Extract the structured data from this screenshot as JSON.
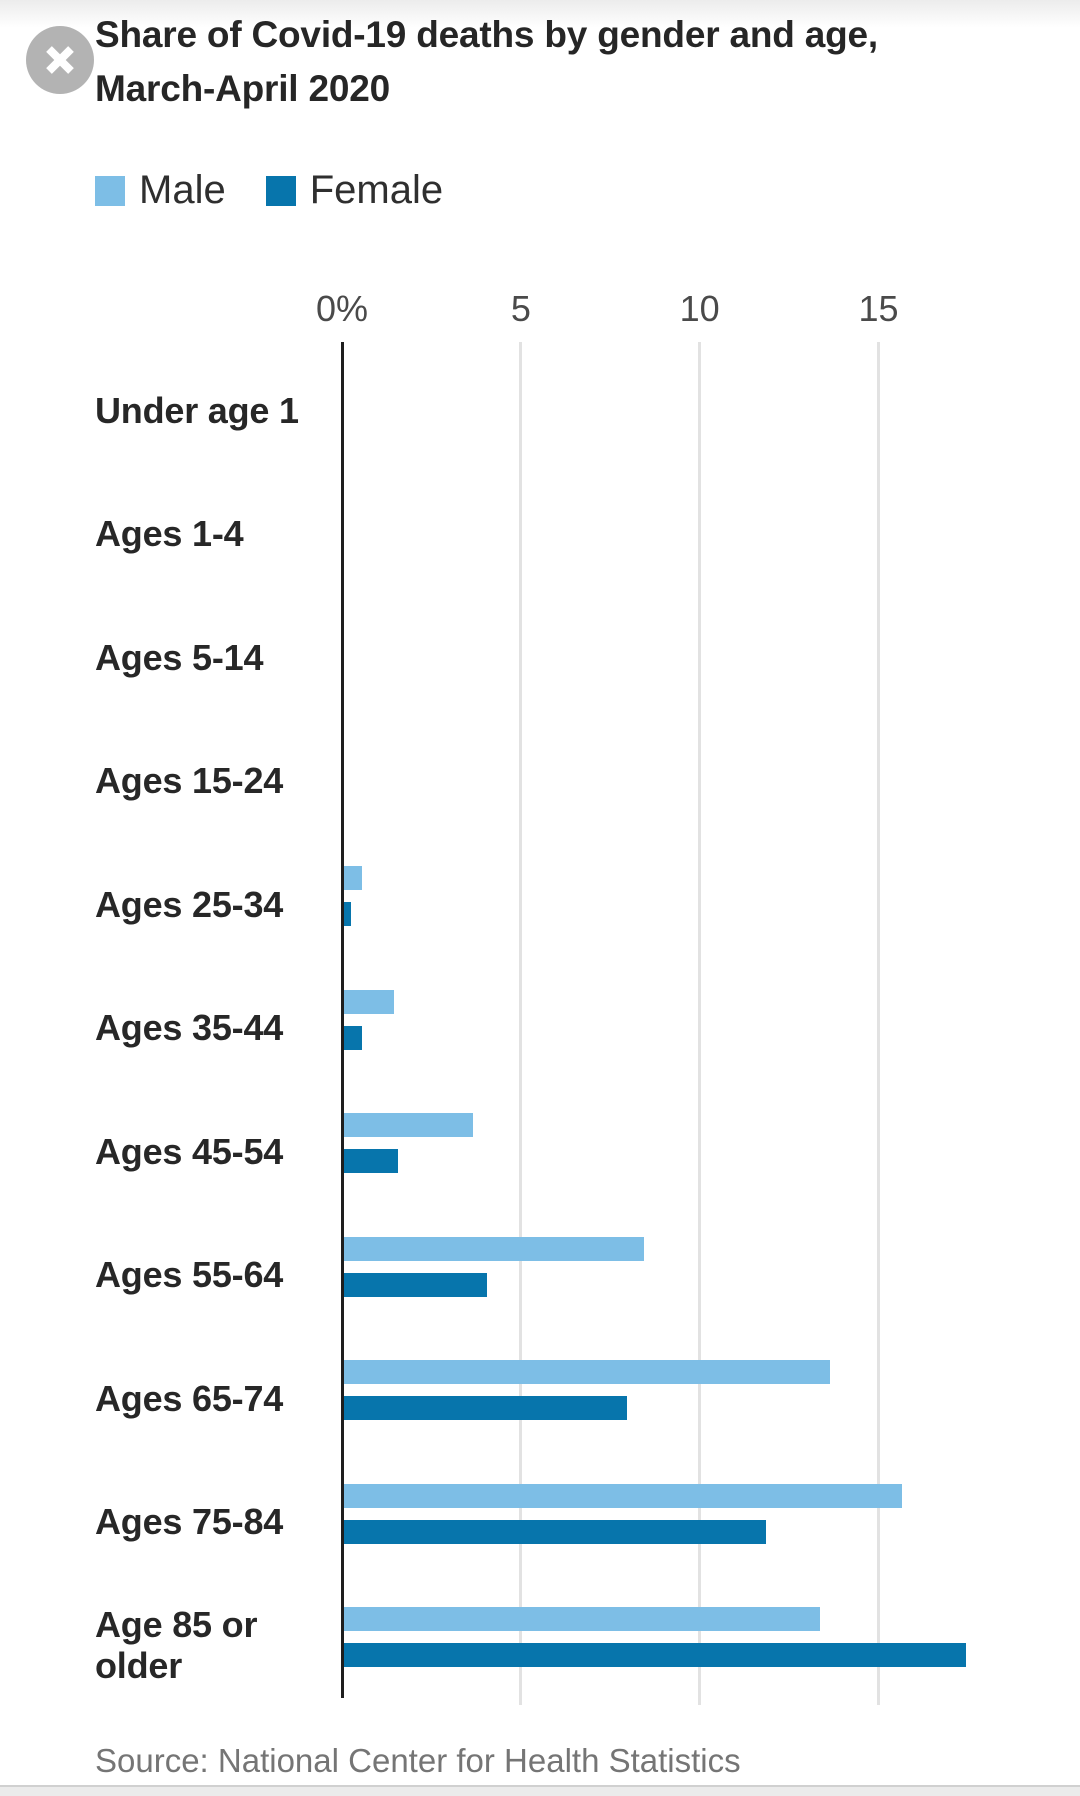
{
  "header": {
    "title_line1": "Share of Covid-19 deaths by gender and age,",
    "title_line2": "March-April 2020"
  },
  "window": {
    "close_icon_glyph": "✕"
  },
  "chart_data": {
    "type": "bar",
    "orientation": "horizontal",
    "title": "Share of Covid-19 deaths by gender and age, March-April 2020",
    "categories": [
      "Under age 1",
      "Ages 1-4",
      "Ages 5-14",
      "Ages 15-24",
      "Ages 25-34",
      "Ages 35-44",
      "Ages 45-54",
      "Ages 55-64",
      "Ages 65-74",
      "Ages 75-84",
      "Age 85 or older"
    ],
    "series": [
      {
        "name": "Male",
        "color": "#7dbee6",
        "values": [
          0,
          0,
          0,
          0,
          0.5,
          1.4,
          3.6,
          8.4,
          13.6,
          15.6,
          13.3
        ]
      },
      {
        "name": "Female",
        "color": "#0775ac",
        "values": [
          0,
          0,
          0,
          0,
          0.2,
          0.5,
          1.5,
          4.0,
          7.9,
          11.8,
          17.4
        ]
      }
    ],
    "x_axis": {
      "tick_labels": [
        "0%",
        "5",
        "10",
        "15"
      ],
      "tick_values": [
        0,
        5,
        10,
        15
      ],
      "unit": "percent",
      "range": [
        0,
        18
      ]
    },
    "grid": true,
    "legend_position": "top-left",
    "source": "Source: National Center for Health Statistics"
  }
}
